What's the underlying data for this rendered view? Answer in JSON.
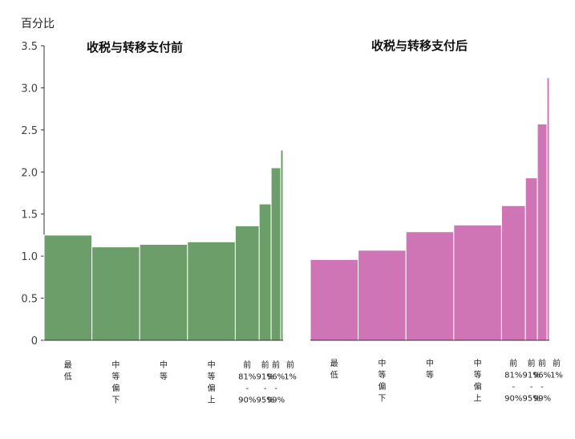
{
  "chart_data": {
    "type": "bar",
    "ylabel": "百分比",
    "ylim": [
      0,
      3.5
    ],
    "yticks": [
      "0",
      "0.5",
      "1.0",
      "1.5",
      "2.0",
      "2.5",
      "3.0",
      "3.5"
    ],
    "grid": false,
    "categories": [
      "最低",
      "中等偏下",
      "中等",
      "中等偏上",
      "前81%-90%",
      "前91%-95%",
      "前96%-99%",
      "前1%"
    ],
    "category_widths": [
      20,
      20,
      20,
      20,
      10,
      5,
      4,
      1
    ],
    "panels": [
      {
        "title": "收税与转移支付前",
        "color": "#6b9e68",
        "category_labels": [
          [
            "最",
            "低"
          ],
          [
            "中",
            "等",
            "偏",
            "下"
          ],
          [
            "中",
            "等"
          ],
          [
            "中",
            "等",
            "偏",
            "上"
          ],
          [
            "前",
            "81%",
            "-",
            "90%"
          ],
          [
            "前",
            "91%",
            "-",
            "95%"
          ],
          [
            "前",
            "96%",
            "-",
            "99%"
          ],
          [
            "前",
            "1%"
          ]
        ],
        "values": [
          1.25,
          1.11,
          1.14,
          1.17,
          1.36,
          1.62,
          2.05,
          2.26
        ]
      },
      {
        "title": "收税与转移支付后",
        "color": "#cf75b6",
        "category_labels": [
          [
            "最",
            "低"
          ],
          [
            "中",
            "等",
            "偏",
            "下"
          ],
          [
            "中",
            "等"
          ],
          [
            "中",
            "等",
            "偏",
            "上"
          ],
          [
            "前",
            "81%",
            "-",
            "90%"
          ],
          [
            "前",
            "91%",
            "-",
            "95%"
          ],
          [
            "前",
            "96%",
            "-",
            "99%"
          ],
          [
            "前",
            "1%"
          ]
        ],
        "values": [
          0.96,
          1.07,
          1.29,
          1.37,
          1.6,
          1.93,
          2.57,
          3.12
        ]
      }
    ]
  }
}
